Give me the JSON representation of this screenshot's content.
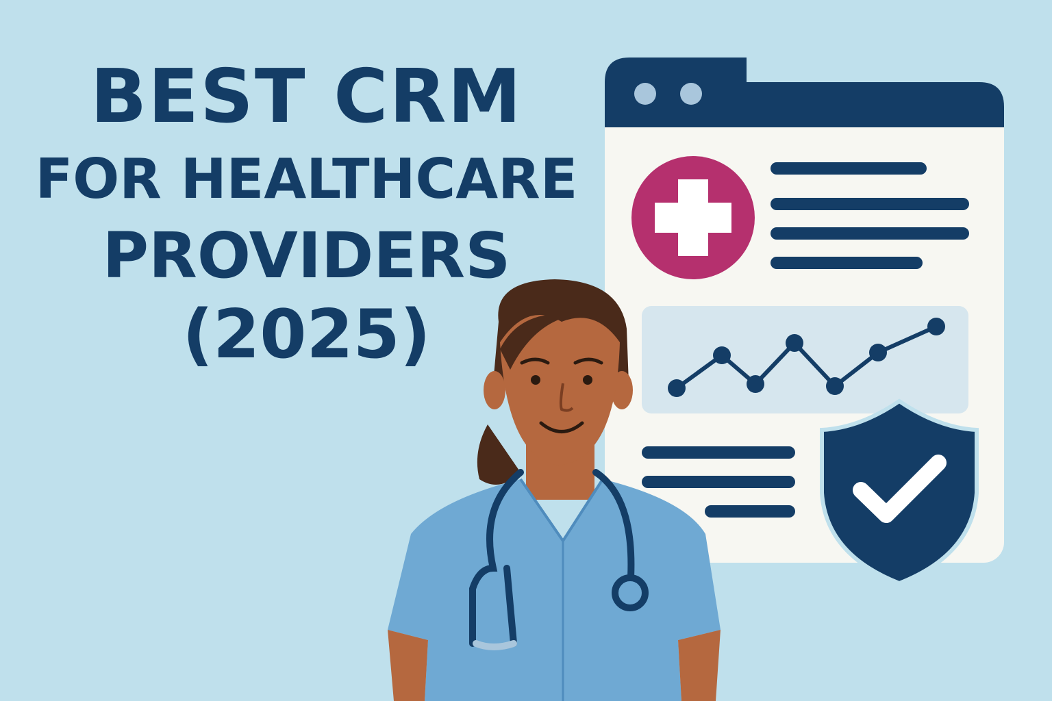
{
  "headline": {
    "line1": "BEST CRM",
    "line2": "FOR HEALTHCARE",
    "line3": "PROVIDERS",
    "line4": "(2025)"
  },
  "colors": {
    "background": "#bfe0ec",
    "navy": "#143d66",
    "accent_magenta": "#b5306e",
    "panel": "#f7f7f2",
    "scrubs": "#6fa9d3"
  },
  "icons": [
    "medical-cross-icon",
    "line-chart-icon",
    "shield-check-icon",
    "stethoscope-icon"
  ]
}
